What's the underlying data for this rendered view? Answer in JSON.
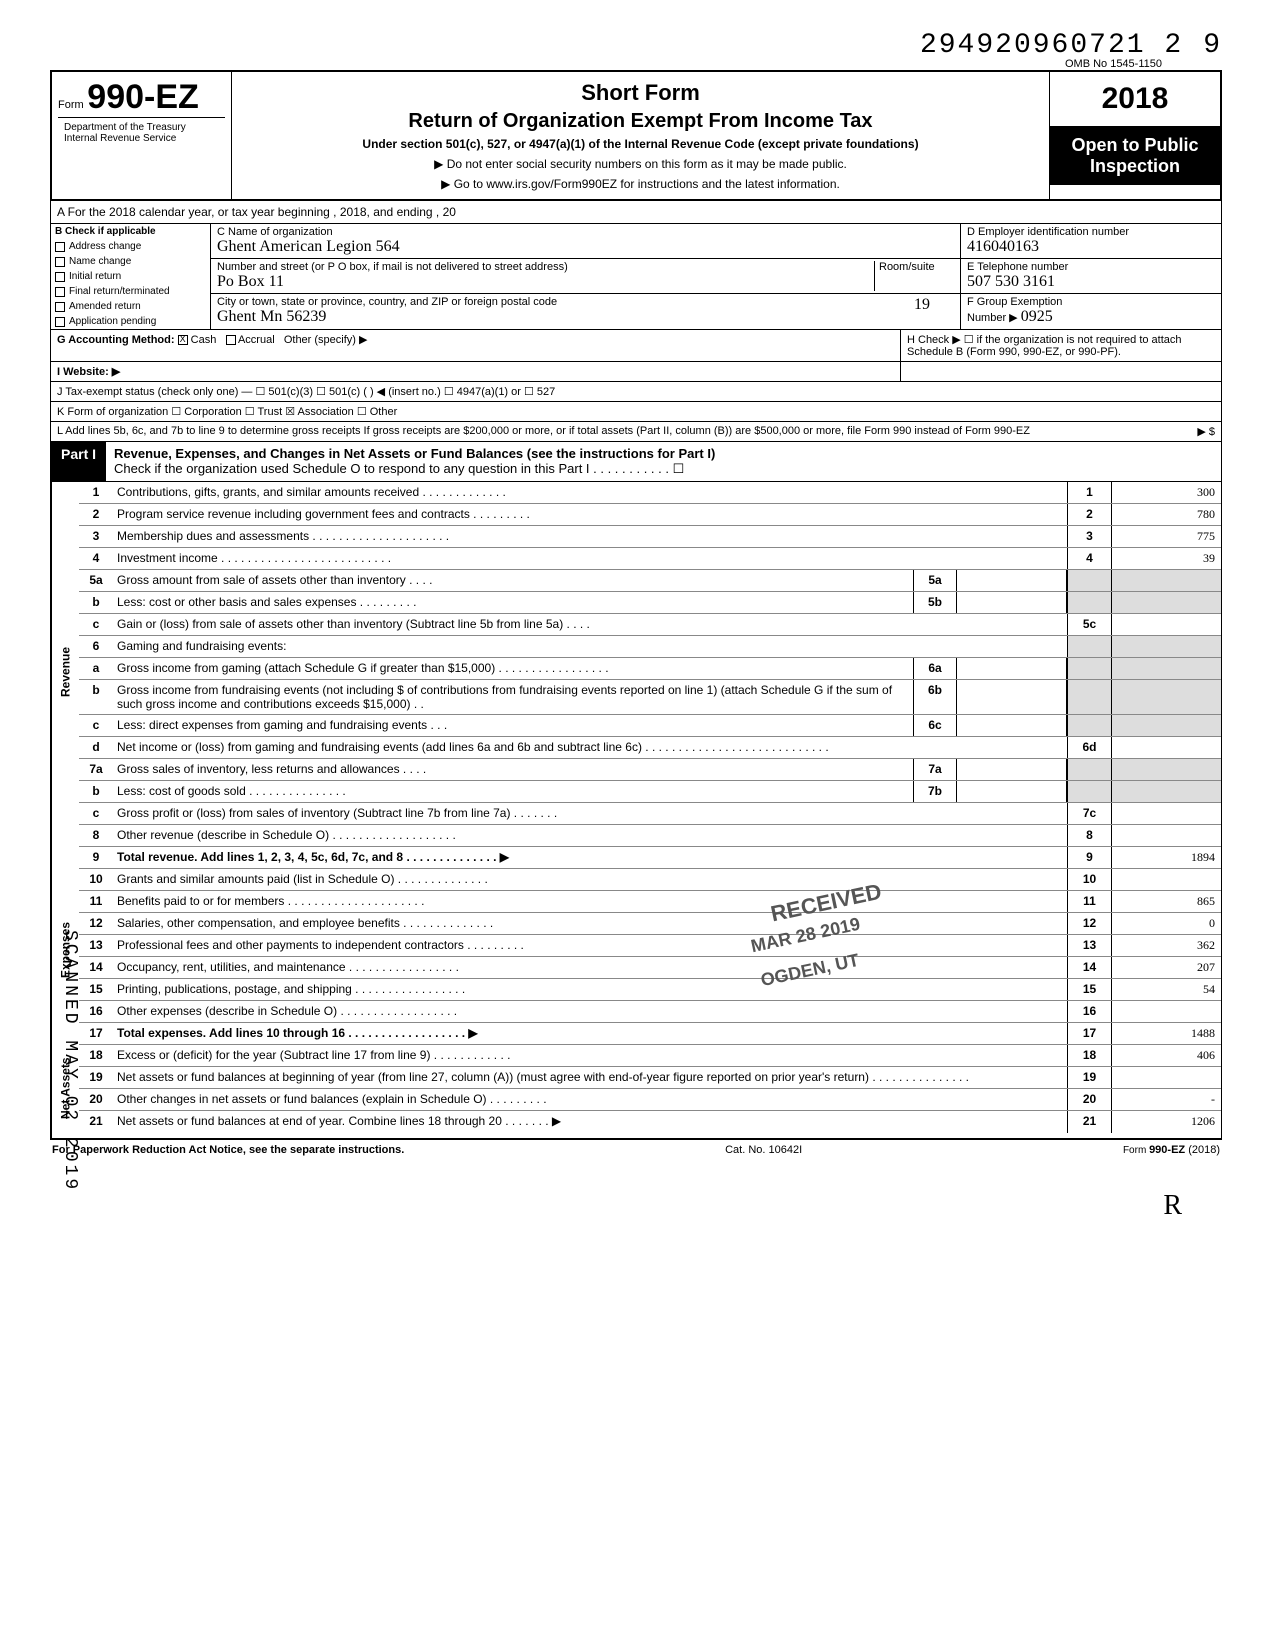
{
  "top_number": "294920960721 2",
  "top_nine": "9",
  "omb": "OMB No 1545-1150",
  "form_prefix": "Form",
  "form_number": "990-EZ",
  "short_form": "Short Form",
  "return_title": "Return of Organization Exempt From Income Tax",
  "subtitle": "Under section 501(c), 527, or 4947(a)(1) of the Internal Revenue Code (except private foundations)",
  "arrow1": "▶ Do not enter social security numbers on this form as it may be made public.",
  "arrow2": "▶ Go to www.irs.gov/Form990EZ for instructions and the latest information.",
  "dept": "Department of the Treasury\nInternal Revenue Service",
  "year": "2018",
  "open_public": "Open to Public Inspection",
  "rowA": "A For the 2018 calendar year, or tax year beginning                                                                   , 2018, and ending                                      , 20",
  "B_label": "B Check if applicable",
  "B_items": [
    "Address change",
    "Name change",
    "Initial return",
    "Final return/terminated",
    "Amended return",
    "Application pending"
  ],
  "C_name_label": "C Name of organization",
  "C_name_value": "Ghent American Legion 564",
  "C_street_label": "Number and street (or P O box, if mail is not delivered to street address)",
  "C_street_value": "Po Box 11",
  "C_room_label": "Room/suite",
  "C_city_label": "City or town, state or province, country, and ZIP or foreign postal code",
  "C_city_value": "Ghent Mn   56239",
  "C_city_right": "19",
  "D_label": "D Employer identification number",
  "D_value": "416040163",
  "E_label": "E Telephone number",
  "E_value": "507 530 3161",
  "F_label": "F Group Exemption",
  "F_label2": "Number ▶",
  "F_value": "0925",
  "G_label": "G Accounting Method:",
  "G_cash": "Cash",
  "G_accrual": "Accrual",
  "G_other": "Other (specify) ▶",
  "H_text": "H Check ▶ ☐ if the organization is not required to attach Schedule B (Form 990, 990-EZ, or 990-PF).",
  "I_label": "I Website: ▶",
  "J_label": "J Tax-exempt status (check only one) — ☐ 501(c)(3)   ☐ 501(c) (      ) ◀ (insert no.) ☐ 4947(a)(1) or   ☐ 527",
  "K_label": "K Form of organization   ☐ Corporation   ☐ Trust   ☒ Association   ☐ Other",
  "L_text": "L Add lines 5b, 6c, and 7b to line 9 to determine gross receipts  If gross receipts are $200,000 or more, or if total assets (Part II, column (B)) are $500,000 or more, file Form 990 instead of Form 990-EZ",
  "L_arrow": "▶  $",
  "part1_label": "Part I",
  "part1_title": "Revenue, Expenses, and Changes in Net Assets or Fund Balances (see the instructions for Part I)",
  "part1_check": "Check if the organization used Schedule O to respond to any question in this Part I . . . . . . . . . . . ☐",
  "side_revenue": "Revenue",
  "side_expenses": "Expenses",
  "side_netassets": "Net Assets",
  "lines": [
    {
      "n": "1",
      "d": "Contributions, gifts, grants, and similar amounts received . . . . . . . . . . . . .",
      "box": "1",
      "amt": "300"
    },
    {
      "n": "2",
      "d": "Program service revenue including government fees and contracts . . . . . . . . .",
      "box": "2",
      "amt": "780"
    },
    {
      "n": "3",
      "d": "Membership dues and assessments . . . . . . . . . . . . . . . . . . . . .",
      "box": "3",
      "amt": "775"
    },
    {
      "n": "4",
      "d": "Investment income . . . . . . . . . . . . . . . . . . . . . . . . . .",
      "box": "4",
      "amt": "39"
    },
    {
      "n": "5a",
      "d": "Gross amount from sale of assets other than inventory . . . .",
      "inset": "5a",
      "insetamt": ""
    },
    {
      "n": "b",
      "d": "Less: cost or other basis and sales expenses . . . . . . . . .",
      "inset": "5b",
      "insetamt": ""
    },
    {
      "n": "c",
      "d": "Gain or (loss) from sale of assets other than inventory (Subtract line 5b from line 5a) . . . .",
      "box": "5c",
      "amt": ""
    },
    {
      "n": "6",
      "d": "Gaming and fundraising events:",
      "box": "",
      "amt": "",
      "shade": true
    },
    {
      "n": "a",
      "d": "Gross income from gaming (attach Schedule G if greater than $15,000) . . . . . . . . . . . . . . . . .",
      "inset": "6a",
      "insetamt": ""
    },
    {
      "n": "b",
      "d": "Gross income from fundraising events (not including $                          of contributions from fundraising events reported on line 1) (attach Schedule G if the sum of such gross income and contributions exceeds $15,000) . .",
      "inset": "6b",
      "insetamt": ""
    },
    {
      "n": "c",
      "d": "Less: direct expenses from gaming and fundraising events . . .",
      "inset": "6c",
      "insetamt": ""
    },
    {
      "n": "d",
      "d": "Net income or (loss) from gaming and fundraising events (add lines 6a and 6b and subtract line 6c) . . . . . . . . . . . . . . . . . . . . . . . . . . . .",
      "box": "6d",
      "amt": ""
    },
    {
      "n": "7a",
      "d": "Gross sales of inventory, less returns and allowances . . . .",
      "inset": "7a",
      "insetamt": ""
    },
    {
      "n": "b",
      "d": "Less: cost of goods sold . . . . . . . . . . . . . . .",
      "inset": "7b",
      "insetamt": ""
    },
    {
      "n": "c",
      "d": "Gross profit or (loss) from sales of inventory (Subtract line 7b from line 7a) . . . . . . .",
      "box": "7c",
      "amt": ""
    },
    {
      "n": "8",
      "d": "Other revenue (describe in Schedule O) . . . . . . . . . . . . . . . . . . .",
      "box": "8",
      "amt": ""
    },
    {
      "n": "9",
      "d": "Total revenue. Add lines 1, 2, 3, 4, 5c, 6d, 7c, and 8 . . . . . . . . . . . . . . ▶",
      "box": "9",
      "amt": "1894",
      "bold": true
    },
    {
      "n": "10",
      "d": "Grants and similar amounts paid (list in Schedule O) . . . . . . . . . . . . . .",
      "box": "10",
      "amt": ""
    },
    {
      "n": "11",
      "d": "Benefits paid to or for members . . . . . . . . . . . . . . . . . . . . .",
      "box": "11",
      "amt": "865"
    },
    {
      "n": "12",
      "d": "Salaries, other compensation, and employee benefits . . . . . . . . . . . . . .",
      "box": "12",
      "amt": "0"
    },
    {
      "n": "13",
      "d": "Professional fees and other payments to independent contractors . . . . . . . . .",
      "box": "13",
      "amt": "362"
    },
    {
      "n": "14",
      "d": "Occupancy, rent, utilities, and maintenance . . . . . . . . . . . . . . . . .",
      "box": "14",
      "amt": "207"
    },
    {
      "n": "15",
      "d": "Printing, publications, postage, and shipping . . . . . . . . . . . . . . . . .",
      "box": "15",
      "amt": "54"
    },
    {
      "n": "16",
      "d": "Other expenses (describe in Schedule O) . . . . . . . . . . . . . . . . . .",
      "box": "16",
      "amt": ""
    },
    {
      "n": "17",
      "d": "Total expenses. Add lines 10 through 16 . . . . . . . . . . . . . . . . . . ▶",
      "box": "17",
      "amt": "1488",
      "bold": true
    },
    {
      "n": "18",
      "d": "Excess or (deficit) for the year (Subtract line 17 from line 9) . . . . . . . . . . . .",
      "box": "18",
      "amt": "406"
    },
    {
      "n": "19",
      "d": "Net assets or fund balances at beginning of year (from line 27, column (A)) (must agree with end-of-year figure reported on prior year's return) . . . . . . . . . . . . . . .",
      "box": "19",
      "amt": ""
    },
    {
      "n": "20",
      "d": "Other changes in net assets or fund balances (explain in Schedule O) . . . . . . . . .",
      "box": "20",
      "amt": "-"
    },
    {
      "n": "21",
      "d": "Net assets or fund balances at end of year. Combine lines 18 through 20 . . . . . . . ▶",
      "box": "21",
      "amt": "1206"
    }
  ],
  "footer_left": "For Paperwork Reduction Act Notice, see the separate instructions.",
  "footer_mid": "Cat. No. 10642I",
  "footer_right": "Form 990-EZ (2018)",
  "stamp_received": "RECEIVED",
  "stamp_date": "MAR 28 2019",
  "stamp_ogden": "OGDEN, UT",
  "scanned": "SCANNED MAY 02 2019",
  "initials": "R"
}
